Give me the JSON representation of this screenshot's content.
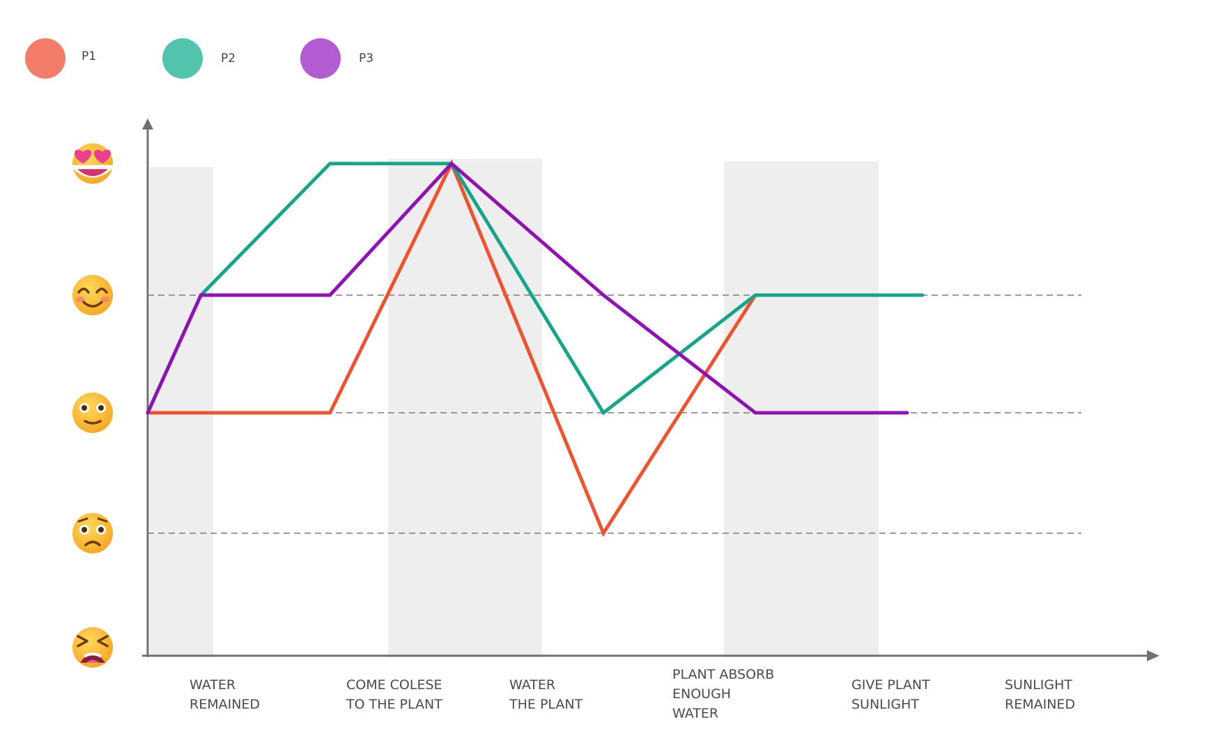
{
  "chart_data": {
    "type": "line",
    "title": "",
    "xlabel": "",
    "ylabel": "",
    "categories": [
      "WATER REMAINED",
      "COME COLESE TO THE PLANT",
      "WATER THE PLANT",
      "PLANT ABSORB ENOUGH WATER",
      "GIVE PLANT SUNLIGHT",
      "SUNLIGHT REMAINED"
    ],
    "category_lines": [
      [
        "WATER",
        "REMAINED"
      ],
      [
        "COME COLESE",
        "TO THE PLANT"
      ],
      [
        "WATER",
        "THE PLANT"
      ],
      [
        "PLANT ABSORB",
        "ENOUGH",
        "WATER"
      ],
      [
        "GIVE PLANT",
        "SUNLIGHT"
      ],
      [
        "SUNLIGHT",
        "REMAINED"
      ]
    ],
    "y_levels": [
      {
        "value": 1,
        "icon": "tired-face-icon"
      },
      {
        "value": 2,
        "icon": "worried-face-icon"
      },
      {
        "value": 3,
        "icon": "neutral-face-icon"
      },
      {
        "value": 4,
        "icon": "smiling-face-icon"
      },
      {
        "value": 5,
        "icon": "heart-eyes-face-icon"
      }
    ],
    "ylim": [
      1,
      5
    ],
    "grid": "dashed horizontal lines at levels 2, 3, 4",
    "legend": "top-left",
    "x_start": 0,
    "series": [
      {
        "name": "P1",
        "color": "#F0522E",
        "legend_color": "#F47D6A",
        "points": [
          [
            0,
            3
          ],
          [
            0.35,
            3
          ],
          [
            1.2,
            3
          ],
          [
            2,
            5
          ],
          [
            3,
            2
          ],
          [
            4,
            4
          ],
          [
            5.1,
            4
          ]
        ]
      },
      {
        "name": "P2",
        "color": "#15A589",
        "legend_color": "#52C3AC",
        "points": [
          [
            0,
            3
          ],
          [
            0.35,
            4
          ],
          [
            1.2,
            5
          ],
          [
            2,
            5
          ],
          [
            3,
            3
          ],
          [
            4,
            4
          ],
          [
            5.1,
            4
          ]
        ]
      },
      {
        "name": "P3",
        "color": "#9012B5",
        "legend_color": "#B35BD0",
        "points": [
          [
            0,
            3
          ],
          [
            0.35,
            4
          ],
          [
            1.2,
            4
          ],
          [
            2,
            5
          ],
          [
            3,
            4
          ],
          [
            4,
            3
          ],
          [
            5.0,
            3
          ]
        ]
      }
    ]
  }
}
